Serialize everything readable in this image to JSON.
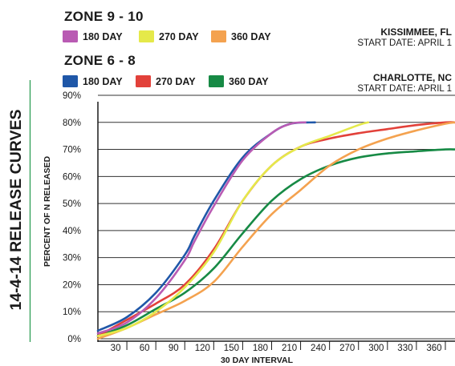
{
  "side_title": "14-4-14 RELEASE CURVES",
  "zones": [
    {
      "title": "ZONE 9 - 10",
      "location": "KISSIMMEE, FL",
      "start_date": "START DATE: APRIL 1",
      "legend": [
        {
          "label": "180 DAY",
          "color": "#b95bb3"
        },
        {
          "label": "270 DAY",
          "color": "#e5e94a"
        },
        {
          "label": "360 DAY",
          "color": "#f4a24f"
        }
      ]
    },
    {
      "title": "ZONE 6 - 8",
      "location": "CHARLOTTE,  NC",
      "start_date": "START DATE: APRIL 1",
      "legend": [
        {
          "label": "180 DAY",
          "color": "#1f57a8"
        },
        {
          "label": "270 DAY",
          "color": "#e2413a"
        },
        {
          "label": "360 DAY",
          "color": "#178a45"
        }
      ]
    }
  ],
  "chart_data": {
    "type": "line",
    "xlabel": "30 DAY INTERVAL",
    "ylabel": "PERCENT OF N RELEASED",
    "xlim": [
      0,
      370
    ],
    "ylim": [
      0,
      90
    ],
    "x_ticks": [
      30,
      60,
      90,
      120,
      150,
      180,
      210,
      240,
      270,
      300,
      330,
      360
    ],
    "y_ticks": [
      0,
      10,
      20,
      30,
      40,
      50,
      60,
      70,
      80,
      90
    ],
    "y_tick_labels": [
      "0%",
      "10%",
      "20%",
      "30%",
      "40%",
      "50%",
      "60%",
      "70%",
      "80%",
      "90%"
    ],
    "grid": "horizontal",
    "series": [
      {
        "zone": "ZONE 9 - 10",
        "name": "180 DAY",
        "color": "#b95bb3",
        "x": [
          0,
          30,
          60,
          90,
          100,
          120,
          150,
          180,
          200,
          215
        ],
        "y": [
          2,
          6,
          15,
          29,
          36,
          49,
          66,
          76,
          79.5,
          80
        ]
      },
      {
        "zone": "ZONE 9 - 10",
        "name": "270 DAY",
        "color": "#e5e94a",
        "x": [
          0,
          30,
          60,
          90,
          120,
          150,
          180,
          210,
          240,
          270,
          280
        ],
        "y": [
          1,
          4,
          10,
          19,
          32,
          51,
          64,
          71,
          75,
          79,
          80
        ]
      },
      {
        "zone": "ZONE 9 - 10",
        "name": "360 DAY",
        "color": "#f4a24f",
        "x": [
          0,
          30,
          60,
          90,
          120,
          150,
          180,
          210,
          240,
          270,
          300,
          330,
          360,
          370
        ],
        "y": [
          0,
          4,
          9,
          14,
          21,
          34,
          46,
          55,
          64,
          70,
          74,
          77,
          79.5,
          80
        ]
      },
      {
        "zone": "ZONE 6 - 8",
        "name": "180 DAY",
        "color": "#1f57a8",
        "x": [
          0,
          30,
          60,
          90,
          100,
          120,
          150,
          180,
          200,
          225
        ],
        "y": [
          3,
          8,
          17,
          31,
          38,
          51,
          67,
          76,
          79.5,
          80
        ]
      },
      {
        "zone": "ZONE 6 - 8",
        "name": "270 DAY",
        "color": "#e2413a",
        "x": [
          0,
          30,
          60,
          90,
          120,
          150,
          180,
          210,
          240,
          270,
          300,
          330,
          360,
          370
        ],
        "y": [
          1,
          7,
          13,
          20,
          33,
          51,
          64,
          71,
          74,
          76,
          77.5,
          79,
          80,
          80
        ]
      },
      {
        "zone": "ZONE 6 - 8",
        "name": "360 DAY",
        "color": "#178a45",
        "x": [
          0,
          30,
          60,
          90,
          120,
          150,
          180,
          210,
          240,
          270,
          300,
          330,
          360,
          370
        ],
        "y": [
          1,
          5,
          11,
          17,
          26,
          39,
          51,
          59,
          64,
          67,
          68.5,
          69.3,
          70,
          70
        ]
      }
    ]
  }
}
